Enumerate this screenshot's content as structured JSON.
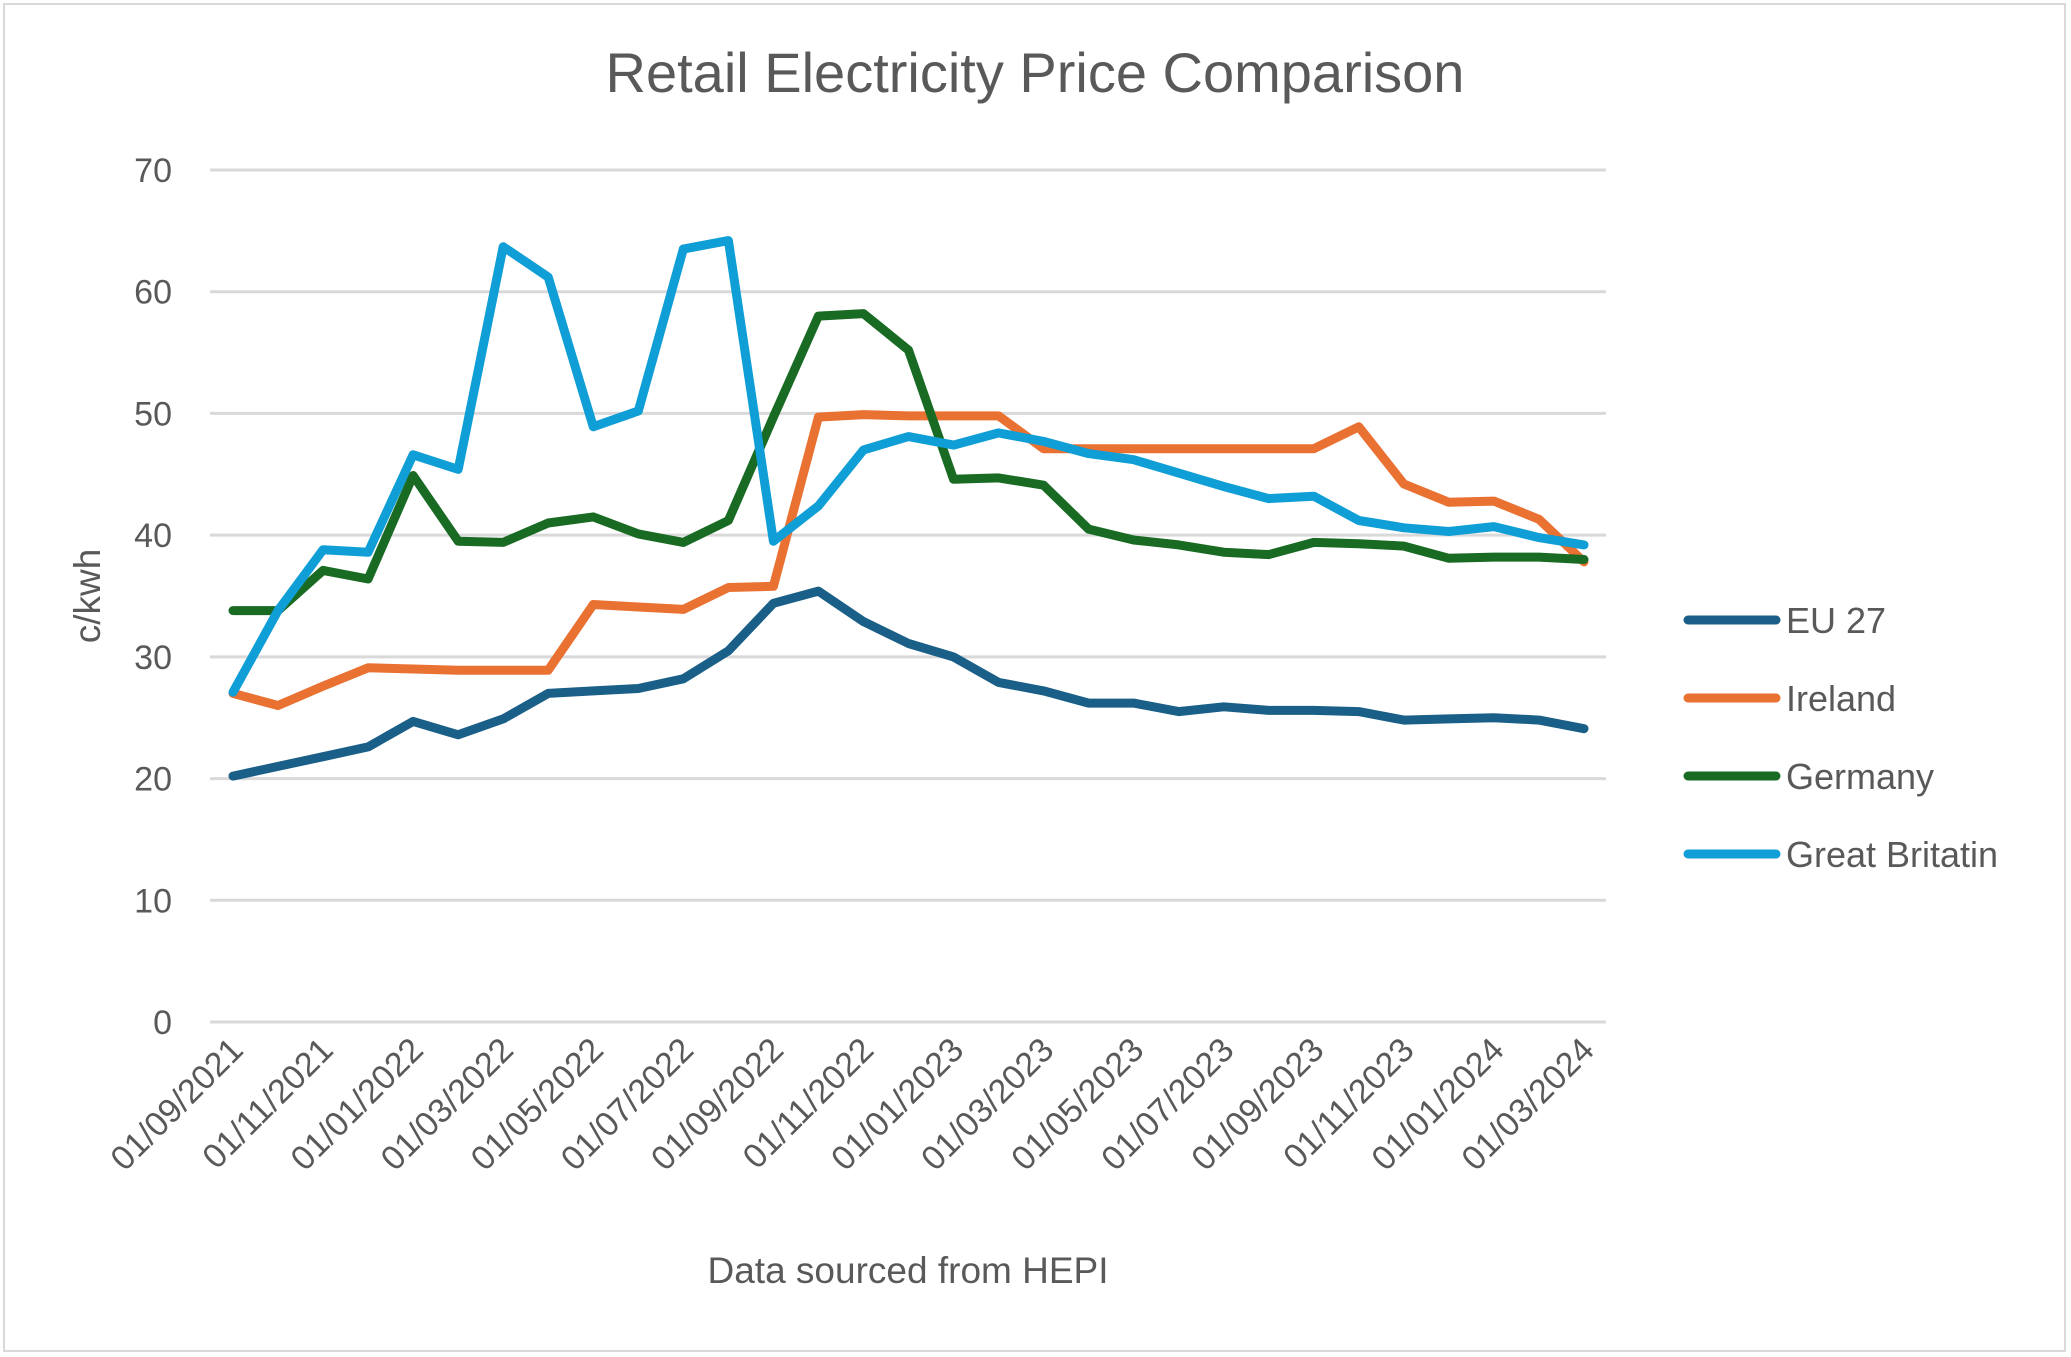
{
  "chart_data": {
    "type": "line",
    "title": "Retail Electricity Price Comparison",
    "xlabel": "Data sourced from HEPI",
    "ylabel": "c/kwh",
    "ylim": [
      0,
      70
    ],
    "yticks": [
      "0",
      "10",
      "20",
      "30",
      "40",
      "50",
      "60",
      "70"
    ],
    "grid": true,
    "legend_position": "right",
    "x": [
      "01/09/2021",
      "01/10/2021",
      "01/11/2021",
      "01/12/2021",
      "01/01/2022",
      "01/02/2022",
      "01/03/2022",
      "01/04/2022",
      "01/05/2022",
      "01/06/2022",
      "01/07/2022",
      "01/08/2022",
      "01/09/2022",
      "01/10/2022",
      "01/11/2022",
      "01/12/2022",
      "01/01/2023",
      "01/02/2023",
      "01/03/2023",
      "01/04/2023",
      "01/05/2023",
      "01/06/2023",
      "01/07/2023",
      "01/08/2023",
      "01/09/2023",
      "01/10/2023",
      "01/11/2023",
      "01/12/2023",
      "01/01/2024",
      "01/02/2024",
      "01/03/2024"
    ],
    "xtick_labels": [
      "01/09/2021",
      "01/11/2021",
      "01/01/2022",
      "01/03/2022",
      "01/05/2022",
      "01/07/2022",
      "01/09/2022",
      "01/11/2022",
      "01/01/2023",
      "01/03/2023",
      "01/05/2023",
      "01/07/2023",
      "01/09/2023",
      "01/11/2023",
      "01/01/2024",
      "01/03/2024"
    ],
    "series": [
      {
        "name": "EU 27",
        "color": "#1a5f87",
        "values": [
          20.2,
          21.0,
          21.8,
          22.6,
          24.7,
          23.6,
          24.9,
          27.0,
          27.2,
          27.4,
          28.2,
          30.5,
          34.4,
          35.4,
          32.9,
          31.1,
          30.0,
          27.9,
          27.2,
          26.2,
          26.2,
          25.5,
          25.9,
          25.6,
          25.6,
          25.5,
          24.8,
          24.9,
          25.0,
          24.8,
          24.1
        ]
      },
      {
        "name": "Ireland",
        "color": "#e97132",
        "values": [
          27.0,
          26.0,
          27.6,
          29.1,
          29.0,
          28.9,
          28.9,
          28.9,
          34.3,
          34.1,
          33.9,
          35.7,
          35.8,
          49.7,
          49.9,
          49.8,
          49.8,
          49.8,
          47.1,
          47.1,
          47.1,
          47.1,
          47.1,
          47.1,
          47.1,
          48.9,
          44.2,
          42.7,
          42.8,
          41.3,
          37.8
        ]
      },
      {
        "name": "Germany",
        "color": "#196b24",
        "values": [
          33.8,
          33.8,
          37.1,
          36.4,
          44.9,
          39.5,
          39.4,
          41.0,
          41.5,
          40.1,
          39.4,
          41.2,
          49.7,
          58.0,
          58.2,
          55.2,
          44.6,
          44.7,
          44.1,
          40.5,
          39.6,
          39.2,
          38.6,
          38.4,
          39.4,
          39.3,
          39.1,
          38.1,
          38.2,
          38.2,
          38.0
        ]
      },
      {
        "name": "Great Britatin",
        "color": "#0f9ed5",
        "values": [
          27.1,
          33.8,
          38.8,
          38.6,
          46.6,
          45.4,
          63.7,
          61.2,
          48.9,
          50.2,
          63.5,
          64.2,
          39.5,
          42.4,
          47.0,
          48.1,
          47.4,
          48.4,
          47.7,
          46.7,
          46.2,
          45.1,
          44.0,
          43.0,
          43.2,
          41.2,
          40.6,
          40.3,
          40.7,
          39.8,
          39.2
        ]
      }
    ]
  }
}
